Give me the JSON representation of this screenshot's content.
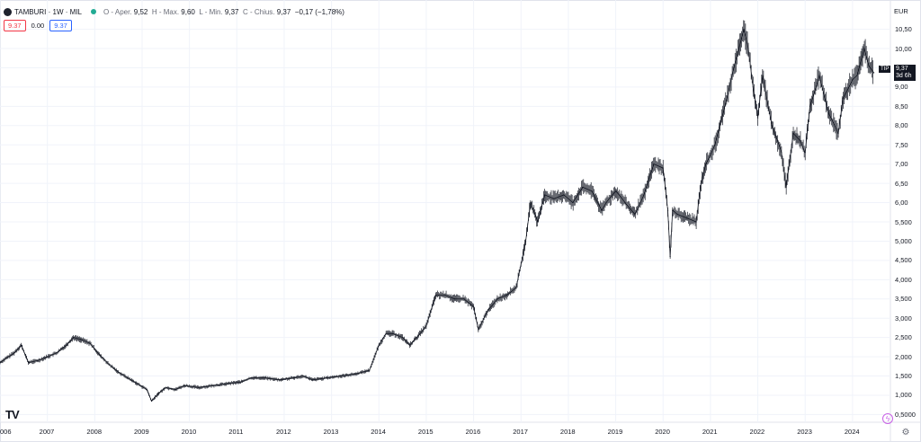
{
  "header": {
    "symbol_line": "TAMBURI · 1W · MIL",
    "open_key": "O - Aper.",
    "open_val": "9,52",
    "high_key": "H - Max.",
    "high_val": "9,60",
    "low_key": "L - Min.",
    "low_val": "9,37",
    "close_key": "C - Chius.",
    "close_val": "9,37",
    "change": "−0,17 (−1,78%)"
  },
  "chips": {
    "bid": "9.37",
    "spread": "0.00",
    "ask": "9.37"
  },
  "axis": {
    "currency": "EUR",
    "price_tag_value": "9,37",
    "price_tag_time": "3d 6h",
    "price_tag_label": "TIP"
  },
  "colors": {
    "line": "#131722",
    "grid": "#f0f3fa",
    "axis": "#e0e3eb",
    "bid": "#f23645",
    "ask": "#2962ff"
  },
  "icons": {
    "logo": "tradingview-logo",
    "bolt": "lightning-icon",
    "settings": "gear-icon"
  },
  "chart_data": {
    "type": "line",
    "title": "TAMBURI · 1W · MIL",
    "xlabel": "",
    "ylabel": "EUR",
    "x_ticks": [
      "006",
      "2007",
      "2008",
      "2009",
      "2010",
      "2011",
      "2012",
      "2013",
      "2014",
      "2015",
      "2016",
      "2017",
      "2018",
      "2019",
      "2020",
      "2021",
      "2022",
      "2023",
      "2024"
    ],
    "y_ticks": [
      "10,50",
      "10,00",
      "9,50",
      "9,00",
      "8,50",
      "8,00",
      "7,50",
      "7,00",
      "6,50",
      "6,00",
      "5,500",
      "5,000",
      "4,500",
      "4,000",
      "3,500",
      "3,000",
      "2,500",
      "2,000",
      "1,500",
      "1,000",
      "0,5000"
    ],
    "ylim": [
      0.3,
      10.7
    ],
    "xlim": [
      2006.0,
      2024.8
    ],
    "grid": true,
    "series": [
      {
        "x": [
          2006.0,
          2006.3,
          2006.45,
          2006.6,
          2006.8,
          2007.0,
          2007.2,
          2007.4,
          2007.55,
          2007.7,
          2007.9,
          2008.1,
          2008.3,
          2008.5,
          2008.7,
          2008.9,
          2009.1,
          2009.2,
          2009.35,
          2009.5,
          2009.7,
          2009.9,
          2010.2,
          2010.5,
          2010.8,
          2011.1,
          2011.3,
          2011.6,
          2011.9,
          2012.2,
          2012.4,
          2012.6,
          2012.9,
          2013.2,
          2013.5,
          2013.8,
          2014.0,
          2014.15,
          2014.3,
          2014.5,
          2014.65,
          2014.8,
          2015.0,
          2015.2,
          2015.4,
          2015.6,
          2015.8,
          2016.0,
          2016.1,
          2016.3,
          2016.5,
          2016.7,
          2016.9,
          2017.1,
          2017.2,
          2017.35,
          2017.5,
          2017.7,
          2017.9,
          2018.1,
          2018.3,
          2018.5,
          2018.7,
          2018.8,
          2019.0,
          2019.2,
          2019.4,
          2019.6,
          2019.8,
          2020.0,
          2020.1,
          2020.15,
          2020.2,
          2020.3,
          2020.5,
          2020.7,
          2020.8,
          2020.9,
          2021.1,
          2021.3,
          2021.5,
          2021.7,
          2021.8,
          2021.9,
          2022.0,
          2022.1,
          2022.3,
          2022.5,
          2022.6,
          2022.75,
          2022.9,
          2023.0,
          2023.1,
          2023.3,
          2023.5,
          2023.7,
          2023.8,
          2024.0,
          2024.1,
          2024.25,
          2024.35,
          2024.45
        ],
        "y": [
          1.85,
          2.1,
          2.3,
          1.85,
          1.9,
          2.0,
          2.1,
          2.3,
          2.5,
          2.45,
          2.35,
          2.05,
          1.8,
          1.6,
          1.45,
          1.3,
          1.15,
          0.85,
          1.05,
          1.2,
          1.15,
          1.25,
          1.2,
          1.25,
          1.3,
          1.35,
          1.45,
          1.45,
          1.4,
          1.45,
          1.5,
          1.4,
          1.45,
          1.5,
          1.55,
          1.65,
          2.3,
          2.6,
          2.6,
          2.5,
          2.3,
          2.5,
          2.8,
          3.6,
          3.6,
          3.5,
          3.5,
          3.3,
          2.7,
          3.2,
          3.5,
          3.6,
          3.8,
          5.0,
          6.0,
          5.5,
          6.2,
          6.1,
          6.2,
          6.0,
          6.4,
          6.3,
          5.8,
          6.0,
          6.3,
          6.0,
          5.7,
          6.2,
          7.0,
          6.9,
          5.8,
          4.6,
          5.8,
          5.7,
          5.6,
          5.5,
          6.5,
          7.0,
          7.5,
          8.5,
          9.5,
          10.5,
          10.0,
          9.0,
          8.2,
          9.3,
          8.0,
          7.3,
          6.4,
          7.8,
          7.6,
          7.3,
          8.5,
          9.3,
          8.3,
          7.8,
          8.7,
          9.2,
          9.3,
          10.0,
          9.55,
          9.37
        ]
      }
    ]
  }
}
